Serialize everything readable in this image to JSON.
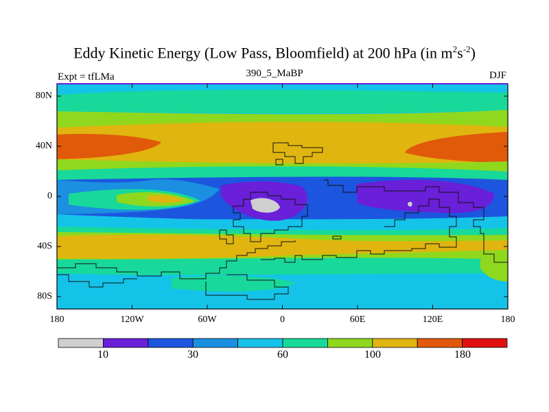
{
  "figure": {
    "title": "Eddy Kinetic Energy (Low Pass, Bloomfield) at 200 hPa (in m²s⁻²)",
    "title_main": "Eddy Kinetic Energy (Low Pass, Bloomfield) at 200 hPa (in m",
    "title_sup1": "2",
    "title_mid": "s",
    "title_sup2": "-2",
    "title_close": ")",
    "left_label": "Expt = tfLMa",
    "center_label": "390_5_MaBP",
    "right_label": "DJF"
  },
  "axes": {
    "lat_ticks": [
      "80N",
      "40N",
      "0",
      "40S",
      "80S"
    ],
    "lon_ticks": [
      "180",
      "120W",
      "60W",
      "0",
      "60E",
      "120E",
      "180"
    ]
  },
  "colorbar": {
    "colors": [
      "#cfcfcf",
      "#6a1fd8",
      "#1c56de",
      "#1b8fe0",
      "#15c3e9",
      "#18d99a",
      "#8fd81d",
      "#e0b510",
      "#e05a0a",
      "#e01010"
    ],
    "labels": [
      "10",
      "30",
      "60",
      "100",
      "180"
    ]
  },
  "chart_data": {
    "type": "heatmap",
    "title": "Eddy Kinetic Energy (Low Pass, Bloomfield) at 200 hPa (in m²s⁻²)",
    "subtitle": "390_5_MaBP",
    "experiment": "Expt = tfLMa",
    "season": "DJF",
    "units": "m2 s-2",
    "x_range": [
      -180,
      180
    ],
    "y_range": [
      -90,
      90
    ],
    "contour_levels": [
      10,
      20,
      30,
      45,
      60,
      80,
      100,
      140,
      180
    ],
    "colors": [
      "#cfcfcf",
      "#6a1fd8",
      "#1c56de",
      "#1b8fe0",
      "#15c3e9",
      "#18d99a",
      "#8fd81d",
      "#e0b510",
      "#e05a0a",
      "#e01010"
    ]
  }
}
